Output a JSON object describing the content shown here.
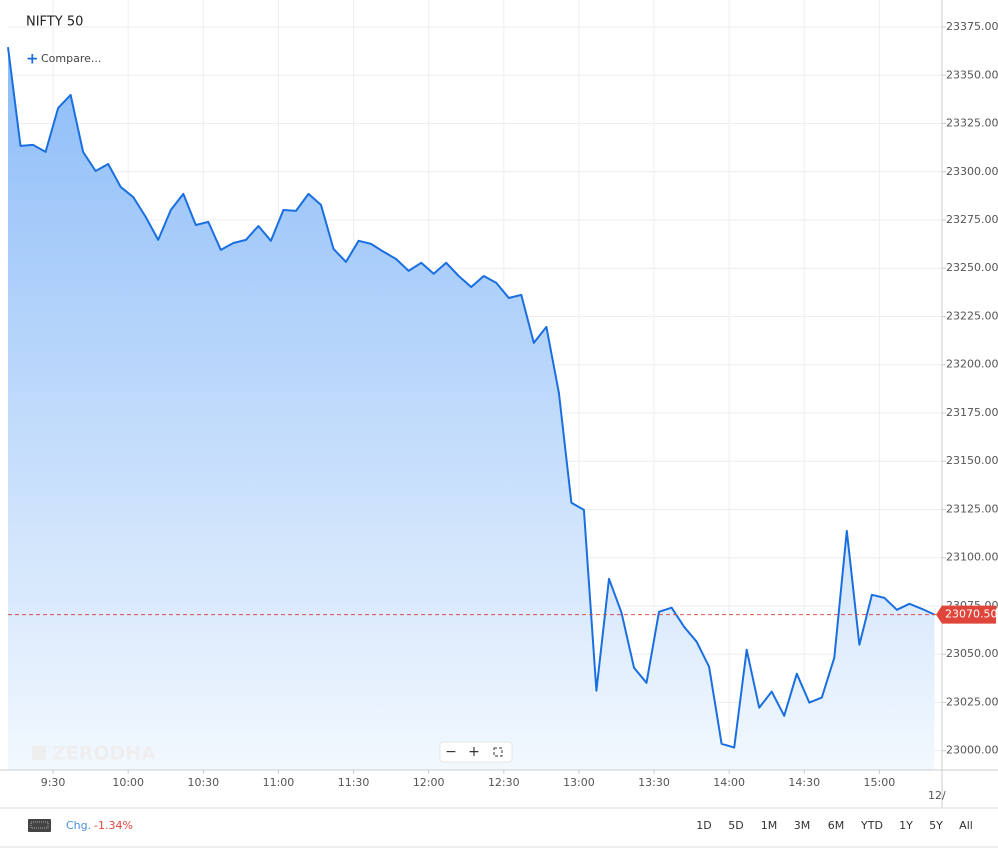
{
  "chart_data": {
    "type": "line",
    "title": "NIFTY 50",
    "x": [
      552,
      557,
      562,
      567,
      572,
      577,
      582,
      587,
      592,
      597,
      602,
      607,
      612,
      617,
      622,
      627,
      632,
      637,
      642,
      647,
      652,
      657,
      662,
      667,
      672,
      677,
      682,
      687,
      692,
      697,
      702,
      707,
      712,
      717,
      722,
      727,
      732,
      737,
      742,
      747,
      752,
      757,
      762,
      767,
      772,
      777,
      782,
      787,
      792,
      797,
      802,
      807,
      812,
      817,
      822,
      827,
      832,
      837,
      842,
      847,
      852,
      857,
      862,
      867,
      872,
      877,
      882,
      887,
      892,
      897,
      902,
      907,
      912,
      917,
      922
    ],
    "series": [
      {
        "name": "NIFTY 50",
        "color": "#1a6fe0",
        "values": [
          23364.6,
          23313.4,
          23313.9,
          23310.3,
          23333.0,
          23339.8,
          23310.3,
          23300.4,
          23304.0,
          23292.1,
          23286.9,
          23276.6,
          23264.7,
          23280.2,
          23288.5,
          23272.4,
          23274.0,
          23259.5,
          23263.1,
          23264.7,
          23271.9,
          23264.2,
          23280.2,
          23279.7,
          23288.5,
          23282.8,
          23260.0,
          23253.3,
          23264.2,
          23262.6,
          23258.5,
          23254.8,
          23248.6,
          23252.8,
          23247.1,
          23252.8,
          23246.0,
          23240.3,
          23246.0,
          23242.4,
          23234.6,
          23236.2,
          23211.3,
          23219.6,
          23185.4,
          23128.5,
          23124.8,
          23031.1,
          23089.1,
          23071.5,
          23043.0,
          23035.2,
          23072.0,
          23074.1,
          23064.2,
          23056.5,
          23043.5,
          23003.6,
          23001.6,
          23052.3,
          23022.3,
          23030.6,
          23018.1,
          23039.9,
          23024.9,
          23027.5,
          23048.2,
          23113.9,
          23054.9,
          23080.8,
          23079.2,
          23073.0,
          23076.1,
          23073.5,
          23070.5
        ]
      }
    ],
    "xlim": [
      552,
      925
    ],
    "xticks": [
      {
        "value": 570,
        "label": "9:30"
      },
      {
        "value": 600,
        "label": "10:00"
      },
      {
        "value": 630,
        "label": "10:30"
      },
      {
        "value": 660,
        "label": "11:00"
      },
      {
        "value": 690,
        "label": "11:30"
      },
      {
        "value": 720,
        "label": "12:00"
      },
      {
        "value": 750,
        "label": "12:30"
      },
      {
        "value": 780,
        "label": "13:00"
      },
      {
        "value": 810,
        "label": "13:30"
      },
      {
        "value": 840,
        "label": "14:00"
      },
      {
        "value": 870,
        "label": "14:30"
      },
      {
        "value": 900,
        "label": "15:00"
      }
    ],
    "ylim": [
      22990,
      23389
    ],
    "yticks": [
      {
        "value": 23000,
        "label": "23000.00"
      },
      {
        "value": 23025,
        "label": "23025.00"
      },
      {
        "value": 23050,
        "label": "23050.00"
      },
      {
        "value": 23075,
        "label": "23075.00"
      },
      {
        "value": 23100,
        "label": "23100.00"
      },
      {
        "value": 23125,
        "label": "23125.00"
      },
      {
        "value": 23150,
        "label": "23150.00"
      },
      {
        "value": 23175,
        "label": "23175.00"
      },
      {
        "value": 23200,
        "label": "23200.00"
      },
      {
        "value": 23225,
        "label": "23225.00"
      },
      {
        "value": 23250,
        "label": "23250.00"
      },
      {
        "value": 23275,
        "label": "23275.00"
      },
      {
        "value": 23300,
        "label": "23300.00"
      },
      {
        "value": 23325,
        "label": "23325.00"
      },
      {
        "value": 23350,
        "label": "23350.00"
      },
      {
        "value": 23375,
        "label": "23375.00"
      }
    ],
    "last_price": {
      "value": 23070.5,
      "label": "23070.50"
    },
    "grid": true
  },
  "ui": {
    "compare": "Compare...",
    "watermark": "ZERODHA",
    "x_edge_label": "12/",
    "change_label": "Chg.",
    "change_value": "-1.34%",
    "ranges": [
      "1D",
      "5D",
      "1M",
      "3M",
      "6M",
      "YTD",
      "1Y",
      "5Y",
      "All"
    ]
  }
}
